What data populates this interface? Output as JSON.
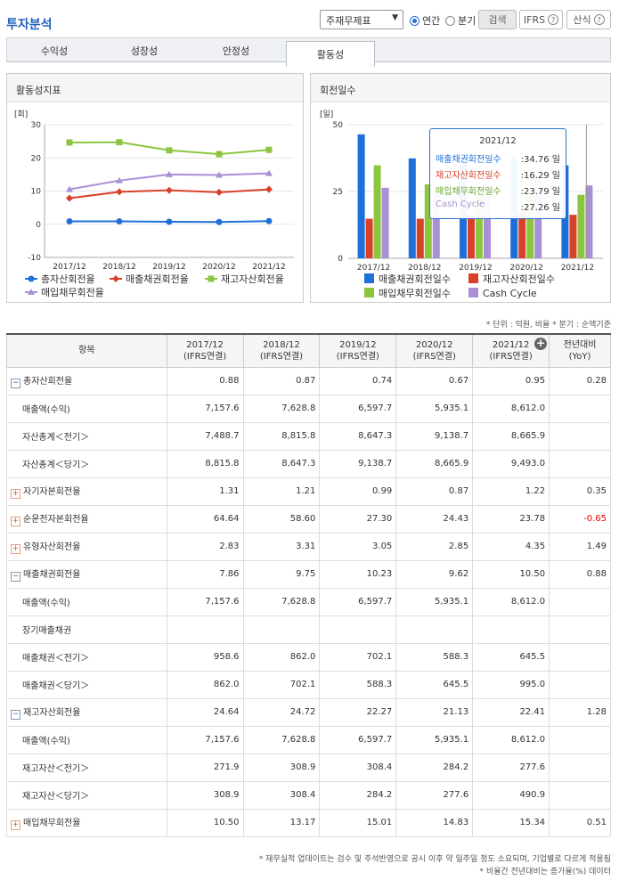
{
  "page_title": "투자분석",
  "controls": {
    "report_select": "주재무제표",
    "radio_annual": "연간",
    "radio_quarter": "분기",
    "search_button": "검색",
    "ifrs_button": "IFRS",
    "formula_button": "산식"
  },
  "tabs": [
    "수익성",
    "성장성",
    "안정성",
    "활동성"
  ],
  "active_tab": "활동성",
  "chart_left": {
    "panel_title": "활동성지표",
    "unit": "[회]",
    "chart_data": {
      "type": "line",
      "categories": [
        "2017/12",
        "2018/12",
        "2019/12",
        "2020/12",
        "2021/12"
      ],
      "ylim": [
        -10,
        30
      ],
      "yticks": [
        "30",
        "20",
        "10",
        "0",
        "-10"
      ],
      "series": [
        {
          "name": "총자산회전율",
          "color": "#1f6fd8",
          "values": [
            0.88,
            0.87,
            0.74,
            0.67,
            0.95
          ]
        },
        {
          "name": "매출채권회전율",
          "color": "#d8402a",
          "values": [
            7.86,
            9.75,
            10.23,
            9.62,
            10.5
          ]
        },
        {
          "name": "재고자산회전율",
          "color": "#8cc63f",
          "values": [
            24.64,
            24.72,
            22.27,
            21.13,
            22.41
          ]
        },
        {
          "name": "매입채무회전율",
          "color": "#a98fd6",
          "values": [
            10.5,
            13.17,
            15.01,
            14.83,
            15.34
          ]
        }
      ]
    }
  },
  "chart_right": {
    "panel_title": "회전일수",
    "unit": "[일]",
    "chart_data": {
      "type": "bar",
      "categories": [
        "2017/12",
        "2018/12",
        "2019/12",
        "2020/12",
        "2021/12"
      ],
      "ylim": [
        0,
        50
      ],
      "yticks": [
        "50",
        "25",
        "0"
      ],
      "series": [
        {
          "name": "매출채권회전일수",
          "color": "#1f6fd8",
          "values": [
            46.4,
            37.4,
            35.7,
            37.9,
            34.76
          ]
        },
        {
          "name": "재고자산회전일수",
          "color": "#d8402a",
          "values": [
            14.8,
            14.8,
            16.4,
            17.3,
            16.29
          ]
        },
        {
          "name": "매입채무회전일수",
          "color": "#8cc63f",
          "values": [
            34.8,
            27.7,
            24.3,
            24.6,
            23.79
          ]
        },
        {
          "name": "Cash Cycle",
          "color": "#a98fd6",
          "values": [
            26.4,
            24.5,
            27.8,
            30.6,
            27.26
          ]
        }
      ]
    },
    "tooltip": {
      "title": "2021/12",
      "rows": [
        {
          "label": "매출채권회전일수",
          "value": ":34.76 일",
          "color": "#1f6fd8"
        },
        {
          "label": "재고자산회전일수",
          "value": ":16.29 일",
          "color": "#d8402a"
        },
        {
          "label": "매입채무회전일수",
          "value": ":23.79 일",
          "color": "#6aa52a"
        },
        {
          "label": "Cash Cycle",
          "value": ":27.26 일",
          "color": "#a98fd6"
        }
      ]
    }
  },
  "unit_note": "* 단위 : 억원, 비율    * 분기 : 순액기준",
  "table": {
    "headers": [
      "항목",
      "2017/12\n(IFRS연결)",
      "2018/12\n(IFRS연결)",
      "2019/12\n(IFRS연결)",
      "2020/12\n(IFRS연결)",
      "2021/12\n(IFRS연결)",
      "전년대비\n(YoY)"
    ],
    "rows": [
      {
        "label": "총자산회전율",
        "toggle": "minus",
        "values": [
          "0.88",
          "0.87",
          "0.74",
          "0.67",
          "0.95",
          "0.28"
        ]
      },
      {
        "label": "매출액(수익)",
        "sub": true,
        "values": [
          "7,157.6",
          "7,628.8",
          "6,597.7",
          "5,935.1",
          "8,612.0",
          ""
        ]
      },
      {
        "label": "자산총계＜전기＞",
        "sub": true,
        "values": [
          "7,488.7",
          "8,815.8",
          "8,647.3",
          "9,138.7",
          "8,665.9",
          ""
        ]
      },
      {
        "label": "자산총계＜당기＞",
        "sub": true,
        "values": [
          "8,815.8",
          "8,647.3",
          "9,138.7",
          "8,665.9",
          "9,493.0",
          ""
        ]
      },
      {
        "label": "자기자본회전율",
        "toggle": "plus",
        "values": [
          "1.31",
          "1.21",
          "0.99",
          "0.87",
          "1.22",
          "0.35"
        ]
      },
      {
        "label": "순운전자본회전율",
        "toggle": "plus",
        "values": [
          "64.64",
          "58.60",
          "27.30",
          "24.43",
          "23.78",
          "-0.65"
        ]
      },
      {
        "label": "유형자산회전율",
        "toggle": "plus",
        "values": [
          "2.83",
          "3.31",
          "3.05",
          "2.85",
          "4.35",
          "1.49"
        ]
      },
      {
        "label": "매출채권회전율",
        "toggle": "minus",
        "values": [
          "7.86",
          "9.75",
          "10.23",
          "9.62",
          "10.50",
          "0.88"
        ]
      },
      {
        "label": "매출액(수익)",
        "sub": true,
        "values": [
          "7,157.6",
          "7,628.8",
          "6,597.7",
          "5,935.1",
          "8,612.0",
          ""
        ]
      },
      {
        "label": "장기매출채권",
        "sub": true,
        "values": [
          "",
          "",
          "",
          "",
          "",
          ""
        ]
      },
      {
        "label": "매출채권＜전기＞",
        "sub": true,
        "values": [
          "958.6",
          "862.0",
          "702.1",
          "588.3",
          "645.5",
          ""
        ]
      },
      {
        "label": "매출채권＜당기＞",
        "sub": true,
        "values": [
          "862.0",
          "702.1",
          "588.3",
          "645.5",
          "995.0",
          ""
        ]
      },
      {
        "label": "재고자산회전율",
        "toggle": "minus",
        "values": [
          "24.64",
          "24.72",
          "22.27",
          "21.13",
          "22.41",
          "1.28"
        ]
      },
      {
        "label": "매출액(수익)",
        "sub": true,
        "values": [
          "7,157.6",
          "7,628.8",
          "6,597.7",
          "5,935.1",
          "8,612.0",
          ""
        ]
      },
      {
        "label": "재고자산＜전기＞",
        "sub": true,
        "values": [
          "271.9",
          "308.9",
          "308.4",
          "284.2",
          "277.6",
          ""
        ]
      },
      {
        "label": "재고자산＜당기＞",
        "sub": true,
        "values": [
          "308.9",
          "308.4",
          "284.2",
          "277.6",
          "490.9",
          ""
        ]
      },
      {
        "label": "매입채무회전율",
        "toggle": "plus",
        "values": [
          "10.50",
          "13.17",
          "15.01",
          "14.83",
          "15.34",
          "0.51"
        ]
      }
    ]
  },
  "footnotes": [
    "* 재무실적 업데이트는 검수 및 주석반영으로 공시 이후 약 일주일 정도 소요되며, 기업별로 다르게 적용됨",
    "* 비율간 전년대비는 증가율(%) 데이터"
  ]
}
